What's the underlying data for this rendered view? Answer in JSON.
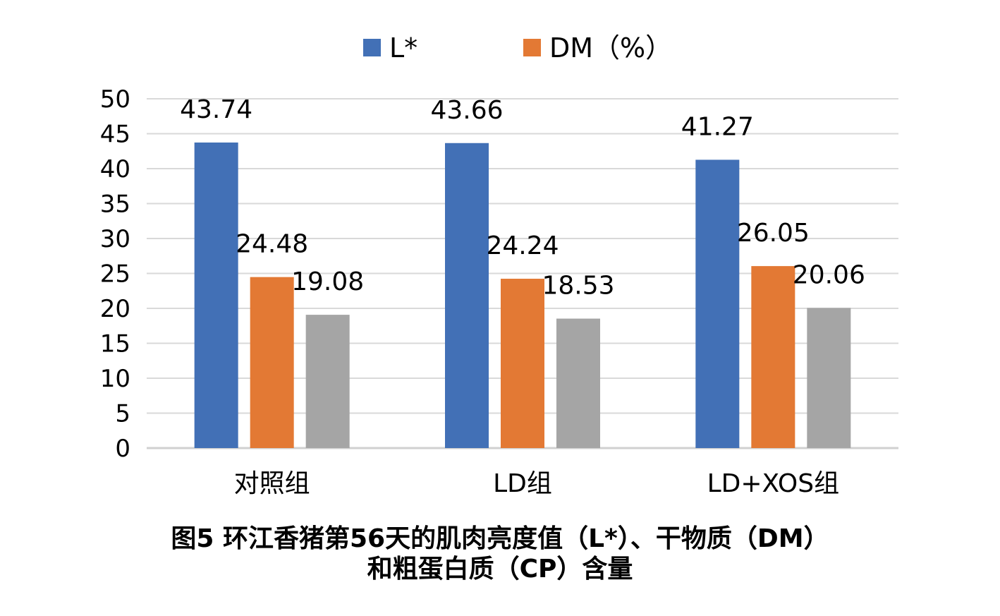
{
  "chart_data": {
    "type": "bar",
    "title": "图5 环江香猪第56天的肌肉亮度值（L*）、干物质（DM）",
    "title_line2": "和粗蛋白质（CP）含量",
    "categories": [
      "对照组",
      "LD组",
      "LD+XOS组"
    ],
    "series": [
      {
        "name": "L*",
        "color": "#4270B6",
        "values": [
          43.74,
          43.66,
          41.27
        ],
        "in_legend": true
      },
      {
        "name": "DM（%）",
        "color": "#E37934",
        "values": [
          24.48,
          24.24,
          26.05
        ],
        "in_legend": true
      },
      {
        "name": "",
        "color": "#A5A5A5",
        "values": [
          19.08,
          18.53,
          20.06
        ],
        "in_legend": false
      }
    ],
    "ylim": [
      0,
      50
    ],
    "yticks": [
      "0",
      "5",
      "10",
      "15",
      "20",
      "25",
      "30",
      "35",
      "40",
      "45",
      "50"
    ],
    "grid": true,
    "legend_position": "top-center",
    "xlabel": "",
    "ylabel": ""
  }
}
